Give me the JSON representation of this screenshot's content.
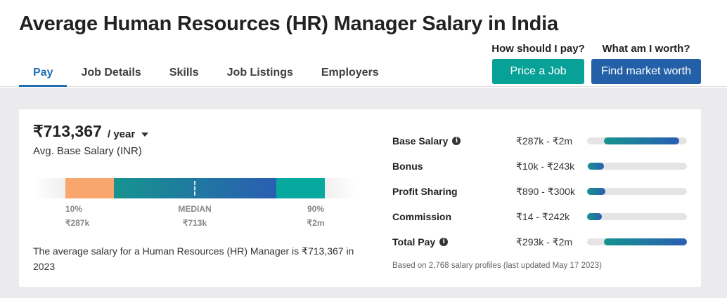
{
  "page": {
    "title": "Average Human Resources (HR) Manager Salary in India"
  },
  "tabs": [
    {
      "label": "Pay",
      "active": true
    },
    {
      "label": "Job Details",
      "active": false
    },
    {
      "label": "Skills",
      "active": false
    },
    {
      "label": "Job Listings",
      "active": false
    },
    {
      "label": "Employers",
      "active": false
    }
  ],
  "cta": {
    "price_question": "How should I pay?",
    "price_button": "Price a Job",
    "worth_question": "What am I worth?",
    "worth_button": "Find market worth",
    "price_color": "#07a197",
    "worth_color": "#2460a7"
  },
  "salary": {
    "value": "₹713,367",
    "period": "/ year",
    "subtitle": "Avg. Base Salary (INR)",
    "percentile_10_label": "10%",
    "percentile_10_value": "₹287k",
    "median_label": "MEDIAN",
    "median_value": "₹713k",
    "percentile_90_label": "90%",
    "percentile_90_value": "₹2m",
    "description": "The average salary for a Human Resources (HR) Manager is ₹713,367 in 2023"
  },
  "breakdown": [
    {
      "label": "Base Salary",
      "info": true,
      "range": "₹287k - ₹2m",
      "fill_start": 0.17,
      "fill_end": 0.92
    },
    {
      "label": "Bonus",
      "info": false,
      "range": "₹10k - ₹243k",
      "fill_start": 0.01,
      "fill_end": 0.17
    },
    {
      "label": "Profit Sharing",
      "info": false,
      "range": "₹890 - ₹300k",
      "fill_start": 0.0,
      "fill_end": 0.18
    },
    {
      "label": "Commission",
      "info": false,
      "range": "₹14 - ₹242k",
      "fill_start": 0.0,
      "fill_end": 0.15
    },
    {
      "label": "Total Pay",
      "info": true,
      "range": "₹293k - ₹2m",
      "fill_start": 0.17,
      "fill_end": 1.0
    }
  ],
  "footnote": "Based on 2,768 salary profiles (last updated May 17 2023)",
  "colors": {
    "accent_blue": "#1f6fb5",
    "low_segment": "#f9a56e",
    "high_segment": "#07a99e"
  }
}
